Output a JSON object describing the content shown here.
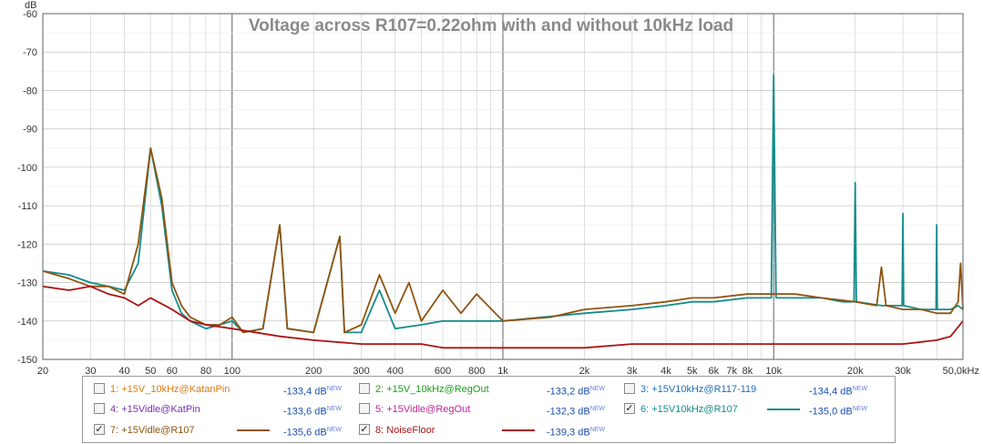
{
  "chart_data": {
    "type": "line",
    "title": "Voltage across R107=0.22ohm with and without 10kHz load",
    "ylabel": "dB",
    "xlabel": "",
    "x_scale": "log",
    "xlim": [
      20,
      50000
    ],
    "ylim": [
      -150,
      -60
    ],
    "y_ticks": [
      "-60",
      "-70",
      "-80",
      "-90",
      "-100",
      "-110",
      "-120",
      "-130",
      "-140",
      "-150"
    ],
    "x_ticks": [
      {
        "v": 20,
        "label": "20"
      },
      {
        "v": 30,
        "label": "30"
      },
      {
        "v": 40,
        "label": "40"
      },
      {
        "v": 50,
        "label": "50"
      },
      {
        "v": 60,
        "label": "60"
      },
      {
        "v": 80,
        "label": "80"
      },
      {
        "v": 100,
        "label": "100"
      },
      {
        "v": 200,
        "label": "200"
      },
      {
        "v": 300,
        "label": "300"
      },
      {
        "v": 400,
        "label": "400"
      },
      {
        "v": 600,
        "label": "600"
      },
      {
        "v": 800,
        "label": "800"
      },
      {
        "v": 1000,
        "label": "1k"
      },
      {
        "v": 2000,
        "label": "2k"
      },
      {
        "v": 3000,
        "label": "3k"
      },
      {
        "v": 4000,
        "label": "4k"
      },
      {
        "v": 5000,
        "label": "5k"
      },
      {
        "v": 6000,
        "label": "6k"
      },
      {
        "v": 7000,
        "label": "7k"
      },
      {
        "v": 8000,
        "label": "8k"
      },
      {
        "v": 10000,
        "label": "10k"
      },
      {
        "v": 20000,
        "label": "20k"
      },
      {
        "v": 30000,
        "label": "30k"
      },
      {
        "v": 50000,
        "label": "50,0kHz"
      }
    ],
    "grid": true,
    "legend_position": "bottom",
    "series": [
      {
        "name": "+15V10kHz@R107",
        "color": "#158c8c",
        "points": [
          [
            20,
            -127
          ],
          [
            25,
            -128
          ],
          [
            30,
            -130
          ],
          [
            35,
            -131
          ],
          [
            40,
            -132
          ],
          [
            45,
            -125
          ],
          [
            50,
            -95
          ],
          [
            55,
            -110
          ],
          [
            60,
            -132
          ],
          [
            65,
            -138
          ],
          [
            70,
            -140
          ],
          [
            80,
            -142
          ],
          [
            90,
            -141
          ],
          [
            100,
            -140
          ],
          [
            110,
            -143
          ],
          [
            130,
            -142
          ],
          [
            150,
            -115
          ],
          [
            160,
            -142
          ],
          [
            200,
            -143
          ],
          [
            250,
            -118
          ],
          [
            260,
            -143
          ],
          [
            300,
            -143
          ],
          [
            350,
            -132
          ],
          [
            400,
            -142
          ],
          [
            500,
            -141
          ],
          [
            600,
            -140
          ],
          [
            800,
            -140
          ],
          [
            1000,
            -140
          ],
          [
            2000,
            -138
          ],
          [
            3000,
            -137
          ],
          [
            4000,
            -136
          ],
          [
            5000,
            -135
          ],
          [
            6000,
            -135
          ],
          [
            8000,
            -134
          ],
          [
            9800,
            -134
          ],
          [
            10000,
            -76
          ],
          [
            10200,
            -134
          ],
          [
            12000,
            -134
          ],
          [
            15000,
            -134
          ],
          [
            18000,
            -135
          ],
          [
            19800,
            -135
          ],
          [
            20000,
            -104
          ],
          [
            20200,
            -135
          ],
          [
            25000,
            -136
          ],
          [
            29800,
            -136
          ],
          [
            30000,
            -112
          ],
          [
            30200,
            -136
          ],
          [
            35000,
            -137
          ],
          [
            39800,
            -137
          ],
          [
            40000,
            -115
          ],
          [
            40200,
            -137
          ],
          [
            45000,
            -137
          ],
          [
            48000,
            -136
          ],
          [
            50000,
            -137
          ]
        ]
      },
      {
        "name": "+15Vidle@R107",
        "color": "#8f5410",
        "points": [
          [
            20,
            -127
          ],
          [
            25,
            -129
          ],
          [
            30,
            -131
          ],
          [
            35,
            -131
          ],
          [
            40,
            -133
          ],
          [
            45,
            -120
          ],
          [
            50,
            -95
          ],
          [
            55,
            -108
          ],
          [
            60,
            -130
          ],
          [
            65,
            -136
          ],
          [
            70,
            -139
          ],
          [
            80,
            -141
          ],
          [
            90,
            -141
          ],
          [
            100,
            -139
          ],
          [
            110,
            -143
          ],
          [
            130,
            -142
          ],
          [
            150,
            -115
          ],
          [
            160,
            -142
          ],
          [
            200,
            -143
          ],
          [
            250,
            -118
          ],
          [
            260,
            -143
          ],
          [
            300,
            -141
          ],
          [
            350,
            -128
          ],
          [
            400,
            -138
          ],
          [
            450,
            -130
          ],
          [
            500,
            -140
          ],
          [
            600,
            -132
          ],
          [
            700,
            -138
          ],
          [
            800,
            -133
          ],
          [
            1000,
            -140
          ],
          [
            1500,
            -139
          ],
          [
            2000,
            -137
          ],
          [
            3000,
            -136
          ],
          [
            4000,
            -135
          ],
          [
            5000,
            -134
          ],
          [
            6000,
            -134
          ],
          [
            8000,
            -133
          ],
          [
            10000,
            -133
          ],
          [
            12000,
            -133
          ],
          [
            15000,
            -134
          ],
          [
            20000,
            -135
          ],
          [
            24000,
            -136
          ],
          [
            25000,
            -126
          ],
          [
            26000,
            -136
          ],
          [
            30000,
            -137
          ],
          [
            35000,
            -137
          ],
          [
            40000,
            -138
          ],
          [
            45000,
            -138
          ],
          [
            48000,
            -135
          ],
          [
            49000,
            -125
          ],
          [
            50000,
            -137
          ]
        ]
      },
      {
        "name": "NoiseFloor",
        "color": "#aa1414",
        "points": [
          [
            20,
            -131
          ],
          [
            25,
            -132
          ],
          [
            30,
            -131
          ],
          [
            35,
            -133
          ],
          [
            40,
            -134
          ],
          [
            45,
            -136
          ],
          [
            50,
            -134
          ],
          [
            60,
            -137
          ],
          [
            70,
            -140
          ],
          [
            80,
            -141
          ],
          [
            100,
            -142
          ],
          [
            150,
            -144
          ],
          [
            200,
            -145
          ],
          [
            300,
            -146
          ],
          [
            400,
            -146
          ],
          [
            500,
            -146
          ],
          [
            600,
            -147
          ],
          [
            800,
            -147
          ],
          [
            1000,
            -147
          ],
          [
            2000,
            -147
          ],
          [
            3000,
            -146
          ],
          [
            5000,
            -146
          ],
          [
            8000,
            -146
          ],
          [
            10000,
            -146
          ],
          [
            15000,
            -146
          ],
          [
            20000,
            -146
          ],
          [
            30000,
            -146
          ],
          [
            40000,
            -145
          ],
          [
            45000,
            -144
          ],
          [
            50000,
            -140
          ]
        ]
      }
    ]
  },
  "legend": {
    "items": [
      {
        "index": "1:",
        "name": "+15V_10kHz@KatanPin",
        "value": "-133,4 dB",
        "badge": "NEW",
        "checked": false,
        "checkmark": "",
        "name_color": "#e07a10"
      },
      {
        "index": "2:",
        "name": "+15V_10kHz@RegOut",
        "value": "-133,2 dB",
        "badge": "NEW",
        "checked": false,
        "checkmark": "",
        "name_color": "#1aa01a"
      },
      {
        "index": "3:",
        "name": "+15V10kHz@R117-119",
        "value": "-134,4 dB",
        "badge": "NEW",
        "checked": false,
        "checkmark": "",
        "name_color": "#1f6fb5"
      },
      {
        "index": "4:",
        "name": "+15Vidle@KatPin",
        "value": "-133,6 dB",
        "badge": "NEW",
        "checked": false,
        "checkmark": "",
        "name_color": "#7a2fb5"
      },
      {
        "index": "5:",
        "name": "+15Vidle@RegOut",
        "value": "-132,3 dB",
        "badge": "NEW",
        "checked": false,
        "checkmark": "",
        "name_color": "#c0249a"
      },
      {
        "index": "6:",
        "name": "+15V10kHz@R107",
        "value": "-135,0 dB",
        "badge": "NEW",
        "checked": true,
        "checkmark": "✓",
        "name_color": "#158c8c"
      },
      {
        "index": "7:",
        "name": "+15Vidle@R107",
        "value": "-135,6 dB",
        "badge": "NEW",
        "checked": true,
        "checkmark": "✓",
        "name_color": "#8f5410"
      },
      {
        "index": "8:",
        "name": "NoiseFloor",
        "value": "-139,3 dB",
        "badge": "NEW",
        "checked": true,
        "checkmark": "✓",
        "name_color": "#aa1414"
      }
    ]
  }
}
